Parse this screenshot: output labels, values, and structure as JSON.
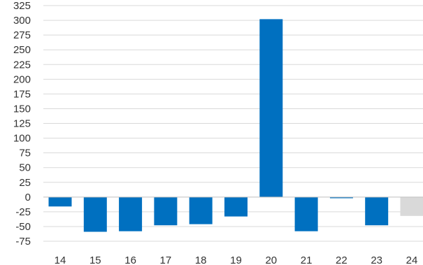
{
  "chart_data": {
    "type": "bar",
    "title": "",
    "xlabel": "",
    "ylabel": "",
    "categories": [
      "14",
      "15",
      "16",
      "17",
      "18",
      "19",
      "20",
      "21",
      "22",
      "23",
      "24"
    ],
    "values": [
      -16,
      -59,
      -58,
      -48,
      -46,
      -33,
      302,
      -58,
      -2,
      -48,
      -32
    ],
    "bar_colors": [
      "#0070C0",
      "#0070C0",
      "#0070C0",
      "#0070C0",
      "#0070C0",
      "#0070C0",
      "#0070C0",
      "#0070C0",
      "#0070C0",
      "#0070C0",
      "#D9D9D9"
    ],
    "ylim": [
      -75,
      325
    ],
    "yticks": [
      -75,
      -50,
      -25,
      0,
      25,
      50,
      75,
      100,
      125,
      150,
      175,
      200,
      225,
      250,
      275,
      300,
      325
    ],
    "ytick_labels": [
      "-75",
      "-50",
      "-25",
      "0",
      "25",
      "50",
      "75",
      "100",
      "125",
      "150",
      "175",
      "200",
      "225",
      "250",
      "275",
      "300",
      "325"
    ],
    "grid": true,
    "legend": "none"
  }
}
